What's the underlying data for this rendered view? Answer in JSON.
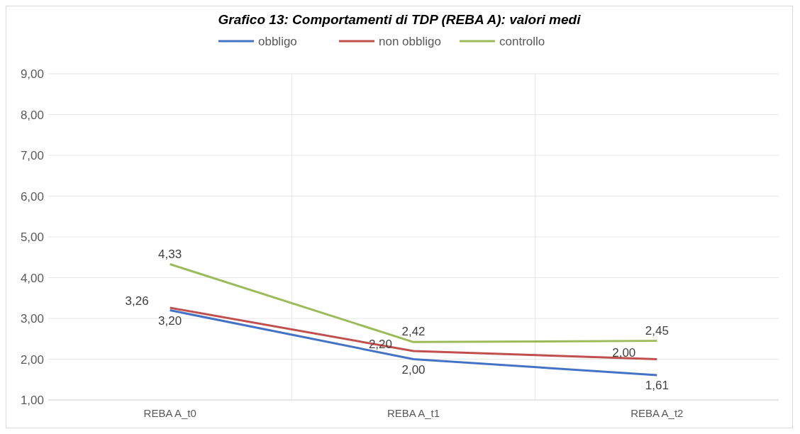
{
  "chart_data": {
    "type": "line",
    "title": "Grafico 13: Comportamenti di TDP (REBA A): valori medi",
    "categories": [
      "REBA A_t0",
      "REBA A_t1",
      "REBA A_t2"
    ],
    "series": [
      {
        "name": "obbligo",
        "color": "#4472c4",
        "values": [
          3.2,
          2.0,
          1.61
        ],
        "value_labels": [
          "3,20",
          "2,00",
          "1,61"
        ]
      },
      {
        "name": "non obbligo",
        "color": "#c0504d",
        "values": [
          3.26,
          2.2,
          2.0
        ],
        "value_labels": [
          "3,26",
          "2,20",
          "2,00"
        ]
      },
      {
        "name": "controllo",
        "color": "#9bbb59",
        "values": [
          4.33,
          2.42,
          2.45
        ],
        "value_labels": [
          "4,33",
          "2,42",
          "2,45"
        ]
      }
    ],
    "ylim": [
      1,
      9
    ],
    "yticks": [
      {
        "value": 1,
        "label": "1,00"
      },
      {
        "value": 2,
        "label": "2,00"
      },
      {
        "value": 3,
        "label": "3,00"
      },
      {
        "value": 4,
        "label": "4,00"
      },
      {
        "value": 5,
        "label": "5,00"
      },
      {
        "value": 6,
        "label": "6,00"
      },
      {
        "value": 7,
        "label": "7,00"
      },
      {
        "value": 8,
        "label": "8,00"
      },
      {
        "value": 9,
        "label": "9,00"
      }
    ],
    "grid": true,
    "legend": "top",
    "marker": "none",
    "line_style": "solid"
  }
}
